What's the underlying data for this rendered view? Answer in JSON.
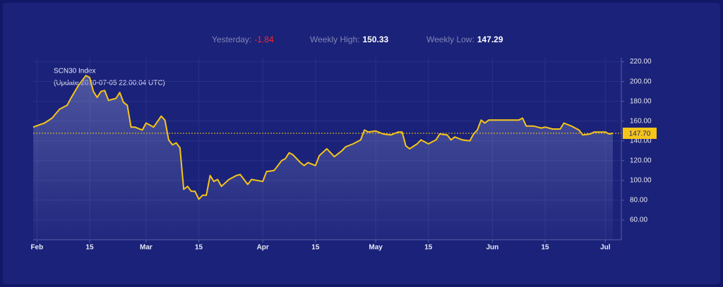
{
  "stats": [
    {
      "label": "Yesterday:",
      "value": "-1.84"
    },
    {
      "label": "Weekly High:",
      "value": "150.33"
    },
    {
      "label": "Weekly Low:",
      "value": "147.29"
    }
  ],
  "chart_data": {
    "type": "area",
    "title": "SCN30 Index",
    "subtitle": "(Update 2020-07-05 22:00:04 UTC)",
    "color": "#f5c518",
    "x": [
      "01-31",
      "02-03",
      "02-05",
      "02-07",
      "02-09",
      "02-10",
      "02-12",
      "02-14",
      "02-15",
      "02-16",
      "02-17",
      "02-18",
      "02-19",
      "02-20",
      "02-22",
      "02-23",
      "02-24",
      "02-25",
      "02-26",
      "02-27",
      "02-29",
      "03-01",
      "03-03",
      "03-05",
      "03-06",
      "03-07",
      "03-08",
      "03-09",
      "03-10",
      "03-11",
      "03-12",
      "03-13",
      "03-14",
      "03-15",
      "03-16",
      "03-17",
      "03-18",
      "03-19",
      "03-20",
      "03-21",
      "03-23",
      "03-25",
      "03-26",
      "03-28",
      "03-29",
      "04-01",
      "04-02",
      "04-04",
      "04-06",
      "04-07",
      "04-08",
      "04-09",
      "04-11",
      "04-12",
      "04-13",
      "04-15",
      "04-16",
      "04-18",
      "04-19",
      "04-20",
      "04-22",
      "04-23",
      "04-25",
      "04-27",
      "04-28",
      "04-29",
      "05-01",
      "05-03",
      "05-05",
      "05-07",
      "05-08",
      "05-09",
      "05-10",
      "05-12",
      "05-13",
      "05-15",
      "05-17",
      "05-18",
      "05-20",
      "05-21",
      "05-22",
      "05-24",
      "05-26",
      "05-27",
      "05-28",
      "05-29",
      "05-30",
      "05-31",
      "06-02",
      "06-04",
      "06-06",
      "06-08",
      "06-09",
      "06-10",
      "06-12",
      "06-14",
      "06-15",
      "06-17",
      "06-19",
      "06-20",
      "06-22",
      "06-24",
      "06-25",
      "06-27",
      "06-28",
      "06-30",
      "07-01",
      "07-02",
      "07-03"
    ],
    "values": [
      154,
      158,
      163,
      172,
      176,
      183,
      196,
      206,
      204,
      190,
      184,
      190,
      191,
      181,
      183,
      189,
      179,
      176,
      154,
      154,
      151,
      158,
      154,
      165,
      161,
      141,
      136,
      138,
      133,
      91,
      94,
      89,
      89,
      81,
      85,
      85,
      105,
      99,
      101,
      94,
      101,
      105,
      106,
      96,
      101,
      99,
      109,
      110,
      120,
      122,
      128,
      126,
      118,
      115,
      118,
      115,
      125,
      132,
      128,
      124,
      130,
      134,
      137,
      141,
      151,
      149,
      150,
      147,
      146,
      149,
      149,
      135,
      132,
      137,
      141,
      137,
      141,
      147,
      146,
      141,
      144,
      141,
      140,
      147,
      151,
      161,
      158,
      161,
      161,
      161,
      161,
      161,
      163,
      155,
      155,
      153,
      154,
      152,
      152,
      158,
      155,
      151,
      146,
      147,
      149,
      149,
      149,
      147,
      147.7
    ],
    "current": {
      "value": 147.7,
      "label": "147.70"
    },
    "xlim": [
      "01-31",
      "07-03"
    ],
    "xticks": [
      {
        "value": "02-01",
        "label": "Feb"
      },
      {
        "value": "02-15",
        "label": "15"
      },
      {
        "value": "03-01",
        "label": "Mar"
      },
      {
        "value": "03-15",
        "label": "15"
      },
      {
        "value": "04-01",
        "label": "Apr"
      },
      {
        "value": "04-15",
        "label": "15"
      },
      {
        "value": "05-01",
        "label": "May"
      },
      {
        "value": "05-15",
        "label": "15"
      },
      {
        "value": "06-01",
        "label": "Jun"
      },
      {
        "value": "06-15",
        "label": "15"
      },
      {
        "value": "07-01",
        "label": "Jul"
      }
    ],
    "ylim": [
      40,
      224
    ],
    "yticks": [
      {
        "value": 60,
        "label": "60.00"
      },
      {
        "value": 80,
        "label": "80.00"
      },
      {
        "value": 100,
        "label": "100.00"
      },
      {
        "value": 120,
        "label": "120.00"
      },
      {
        "value": 140,
        "label": "140.00"
      },
      {
        "value": 160,
        "label": "160.00"
      },
      {
        "value": 180,
        "label": "180.00"
      },
      {
        "value": 200,
        "label": "200.00"
      },
      {
        "value": 220,
        "label": "220.00"
      }
    ],
    "grid": true
  }
}
